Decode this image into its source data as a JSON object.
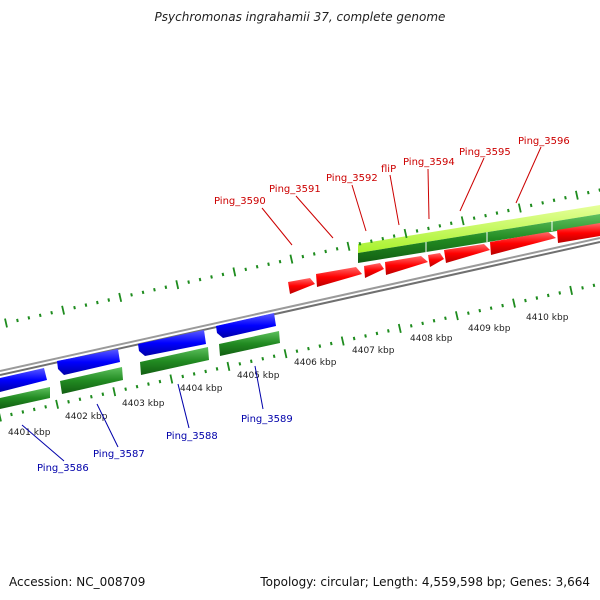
{
  "title": "Psychromonas ingrahamii 37, complete genome",
  "accession": "Accession: NC_008709",
  "stats": "Topology: circular; Length: 4,559,598 bp; Genes: 3,664",
  "colors": {
    "forward_cds": "#ff0000",
    "reverse_cds": "#0000ff",
    "gene_track": "#228b22",
    "gc_highlight": "#b7ff3a",
    "backbone": "#8c8c8c",
    "ticks": "#1e8c1e",
    "forward_label": "#cc0000",
    "reverse_label": "#0000aa"
  },
  "tick_labels": [
    "4401 kbp",
    "4402 kbp",
    "4403 kbp",
    "4404 kbp",
    "4405 kbp",
    "4406 kbp",
    "4407 kbp",
    "4408 kbp",
    "4409 kbp",
    "4410 kbp"
  ],
  "forward_genes": [
    "Ping_3590",
    "Ping_3591",
    "Ping_3592",
    "fliP",
    "Ping_3594",
    "Ping_3595",
    "Ping_3596"
  ],
  "reverse_genes": [
    "Ping_3586",
    "Ping_3587",
    "Ping_3588",
    "Ping_3589"
  ]
}
